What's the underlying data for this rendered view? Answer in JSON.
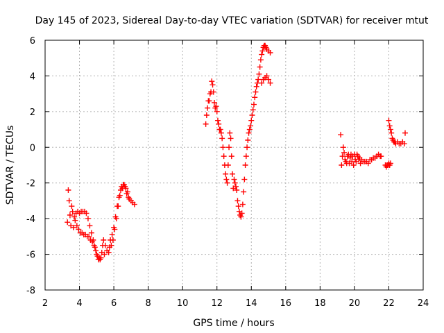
{
  "chart_data": {
    "type": "scatter",
    "title": "Day 145 of 2023, Sidereal Day-to-day VTEC variation (SDTVAR) for receiver mtut",
    "xlabel": "GPS time / hours",
    "ylabel": "SDTVAR / TECUs",
    "xlim": [
      2,
      24
    ],
    "ylim": [
      -8,
      6
    ],
    "xticks": [
      2,
      4,
      6,
      8,
      10,
      12,
      14,
      16,
      18,
      20,
      22,
      24
    ],
    "yticks": [
      -8,
      -6,
      -4,
      -2,
      0,
      2,
      4,
      6
    ],
    "grid": true,
    "marker": "+",
    "series_color": "#ff0000",
    "series": [
      {
        "points": [
          [
            3.3,
            -4.2
          ],
          [
            3.35,
            -2.4
          ],
          [
            3.4,
            -3.0
          ],
          [
            3.45,
            -3.8
          ],
          [
            3.5,
            -4.4
          ],
          [
            3.55,
            -3.3
          ],
          [
            3.6,
            -3.6
          ],
          [
            3.65,
            -4.5
          ],
          [
            3.7,
            -3.9
          ],
          [
            3.75,
            -4.1
          ],
          [
            3.8,
            -3.7
          ],
          [
            3.85,
            -4.4
          ],
          [
            3.9,
            -3.6
          ],
          [
            3.95,
            -4.6
          ],
          [
            4.0,
            -3.7
          ],
          [
            4.05,
            -4.8
          ],
          [
            4.1,
            -3.6
          ],
          [
            4.15,
            -4.8
          ],
          [
            4.2,
            -3.6
          ],
          [
            4.25,
            -4.9
          ],
          [
            4.3,
            -3.6
          ],
          [
            4.35,
            -4.9
          ],
          [
            4.4,
            -3.7
          ],
          [
            4.45,
            -5.0
          ],
          [
            4.5,
            -4.0
          ],
          [
            4.55,
            -5.0
          ],
          [
            4.6,
            -4.4
          ],
          [
            4.65,
            -5.2
          ],
          [
            4.7,
            -4.8
          ],
          [
            4.75,
            -5.3
          ],
          [
            4.8,
            -5.2
          ],
          [
            4.85,
            -5.5
          ],
          [
            4.9,
            -5.6
          ],
          [
            4.95,
            -5.8
          ],
          [
            5.0,
            -6.0
          ],
          [
            5.05,
            -6.1
          ],
          [
            5.1,
            -6.3
          ],
          [
            5.15,
            -6.2
          ],
          [
            5.2,
            -6.3
          ],
          [
            5.25,
            -6.2
          ],
          [
            5.3,
            -5.9
          ],
          [
            5.35,
            -5.5
          ],
          [
            5.4,
            -5.2
          ],
          [
            5.45,
            -6.0
          ],
          [
            5.5,
            -5.5
          ],
          [
            5.6,
            -5.8
          ],
          [
            5.7,
            -5.9
          ],
          [
            5.75,
            -5.6
          ],
          [
            5.8,
            -5.2
          ],
          [
            5.85,
            -5.5
          ],
          [
            5.9,
            -4.9
          ],
          [
            5.95,
            -5.2
          ],
          [
            6.0,
            -4.5
          ],
          [
            6.05,
            -4.6
          ],
          [
            6.1,
            -3.9
          ],
          [
            6.15,
            -4.0
          ],
          [
            6.2,
            -3.3
          ],
          [
            6.25,
            -3.3
          ],
          [
            6.3,
            -2.8
          ],
          [
            6.35,
            -2.7
          ],
          [
            6.4,
            -2.4
          ],
          [
            6.45,
            -2.2
          ],
          [
            6.5,
            -2.3
          ],
          [
            6.55,
            -2.1
          ],
          [
            6.6,
            -2.1
          ],
          [
            6.65,
            -2.2
          ],
          [
            6.7,
            -2.3
          ],
          [
            6.75,
            -2.6
          ],
          [
            6.8,
            -2.5
          ],
          [
            6.85,
            -2.8
          ],
          [
            6.9,
            -2.9
          ],
          [
            7.0,
            -3.0
          ],
          [
            7.1,
            -3.1
          ],
          [
            7.2,
            -3.2
          ]
        ]
      },
      {
        "points": [
          [
            11.35,
            1.3
          ],
          [
            11.4,
            1.8
          ],
          [
            11.45,
            2.2
          ],
          [
            11.5,
            2.6
          ],
          [
            11.55,
            2.6
          ],
          [
            11.6,
            3.0
          ],
          [
            11.65,
            3.1
          ],
          [
            11.7,
            3.7
          ],
          [
            11.75,
            3.5
          ],
          [
            11.8,
            3.1
          ],
          [
            11.85,
            2.5
          ],
          [
            11.9,
            2.2
          ],
          [
            11.95,
            2.3
          ],
          [
            12.0,
            2.0
          ],
          [
            12.05,
            1.5
          ],
          [
            12.1,
            1.3
          ],
          [
            12.15,
            1.0
          ],
          [
            12.2,
            1.0
          ],
          [
            12.25,
            0.8
          ],
          [
            12.3,
            0.5
          ],
          [
            12.35,
            0.0
          ],
          [
            12.4,
            -0.5
          ],
          [
            12.45,
            -1.0
          ],
          [
            12.5,
            -1.5
          ],
          [
            12.55,
            -1.8
          ],
          [
            12.6,
            -2.0
          ],
          [
            12.65,
            -1.0
          ],
          [
            12.7,
            0.0
          ],
          [
            12.75,
            0.8
          ],
          [
            12.8,
            0.5
          ],
          [
            12.85,
            -0.5
          ],
          [
            12.9,
            -1.5
          ],
          [
            12.95,
            -2.3
          ],
          [
            13.0,
            -1.8
          ],
          [
            13.05,
            -2.0
          ],
          [
            13.1,
            -2.2
          ],
          [
            13.15,
            -2.4
          ],
          [
            13.2,
            -3.0
          ],
          [
            13.25,
            -3.3
          ],
          [
            13.3,
            -3.6
          ],
          [
            13.35,
            -3.8
          ],
          [
            13.4,
            -3.9
          ],
          [
            13.45,
            -3.7
          ],
          [
            13.5,
            -3.2
          ],
          [
            13.55,
            -2.5
          ],
          [
            13.6,
            -1.8
          ],
          [
            13.65,
            -1.0
          ],
          [
            13.7,
            -0.5
          ],
          [
            13.75,
            0.0
          ],
          [
            13.8,
            0.4
          ],
          [
            13.85,
            0.8
          ],
          [
            13.9,
            1.0
          ],
          [
            13.95,
            1.2
          ],
          [
            14.0,
            1.5
          ],
          [
            14.05,
            1.8
          ],
          [
            14.1,
            2.1
          ],
          [
            14.15,
            2.4
          ],
          [
            14.2,
            2.8
          ],
          [
            14.25,
            3.1
          ],
          [
            14.3,
            3.4
          ],
          [
            14.35,
            3.6
          ],
          [
            14.4,
            3.8
          ],
          [
            14.45,
            4.1
          ],
          [
            14.5,
            4.5
          ],
          [
            14.55,
            4.9
          ],
          [
            14.6,
            5.2
          ],
          [
            14.65,
            5.4
          ],
          [
            14.7,
            5.6
          ],
          [
            14.75,
            5.7
          ],
          [
            14.8,
            5.7
          ],
          [
            14.85,
            5.6
          ],
          [
            14.9,
            5.5
          ],
          [
            15.0,
            5.4
          ],
          [
            15.1,
            5.3
          ],
          [
            14.6,
            3.6
          ],
          [
            14.7,
            3.8
          ],
          [
            14.8,
            3.9
          ],
          [
            14.9,
            4.0
          ],
          [
            15.0,
            3.8
          ],
          [
            15.1,
            3.6
          ]
        ]
      },
      {
        "points": [
          [
            19.2,
            0.7
          ],
          [
            19.25,
            -1.0
          ],
          [
            19.3,
            -0.5
          ],
          [
            19.35,
            0.0
          ],
          [
            19.4,
            -0.3
          ],
          [
            19.45,
            -0.7
          ],
          [
            19.5,
            -0.8
          ],
          [
            19.55,
            -0.9
          ],
          [
            19.6,
            -0.5
          ],
          [
            19.65,
            -0.4
          ],
          [
            19.7,
            -0.9
          ],
          [
            19.75,
            -0.6
          ],
          [
            19.8,
            -0.4
          ],
          [
            19.85,
            -0.8
          ],
          [
            19.9,
            -0.5
          ],
          [
            19.95,
            -1.0
          ],
          [
            20.0,
            -0.4
          ],
          [
            20.05,
            -0.7
          ],
          [
            20.1,
            -0.8
          ],
          [
            20.15,
            -0.4
          ],
          [
            20.2,
            -0.5
          ],
          [
            20.25,
            -0.7
          ],
          [
            20.3,
            -0.6
          ],
          [
            20.35,
            -0.9
          ],
          [
            20.4,
            -0.7
          ],
          [
            20.5,
            -0.8
          ],
          [
            20.6,
            -0.8
          ],
          [
            20.7,
            -0.8
          ],
          [
            20.8,
            -0.9
          ],
          [
            20.9,
            -0.7
          ],
          [
            21.0,
            -0.7
          ],
          [
            21.1,
            -0.6
          ],
          [
            21.2,
            -0.6
          ],
          [
            21.3,
            -0.5
          ],
          [
            21.4,
            -0.4
          ],
          [
            21.5,
            -0.5
          ],
          [
            21.55,
            -0.5
          ],
          [
            21.8,
            -1.0
          ],
          [
            21.85,
            -1.1
          ],
          [
            21.9,
            -1.0
          ],
          [
            21.95,
            -1.0
          ],
          [
            22.0,
            -0.9
          ],
          [
            22.05,
            -1.0
          ],
          [
            22.1,
            -0.9
          ],
          [
            22.0,
            1.5
          ],
          [
            22.05,
            1.2
          ],
          [
            22.1,
            1.0
          ],
          [
            22.15,
            0.8
          ],
          [
            22.2,
            0.5
          ],
          [
            22.25,
            0.4
          ],
          [
            22.3,
            0.3
          ],
          [
            22.35,
            0.3
          ],
          [
            22.4,
            0.2
          ],
          [
            22.5,
            0.3
          ],
          [
            22.6,
            0.2
          ],
          [
            22.7,
            0.2
          ],
          [
            22.8,
            0.3
          ],
          [
            22.9,
            0.2
          ],
          [
            22.95,
            0.8
          ]
        ]
      }
    ]
  }
}
